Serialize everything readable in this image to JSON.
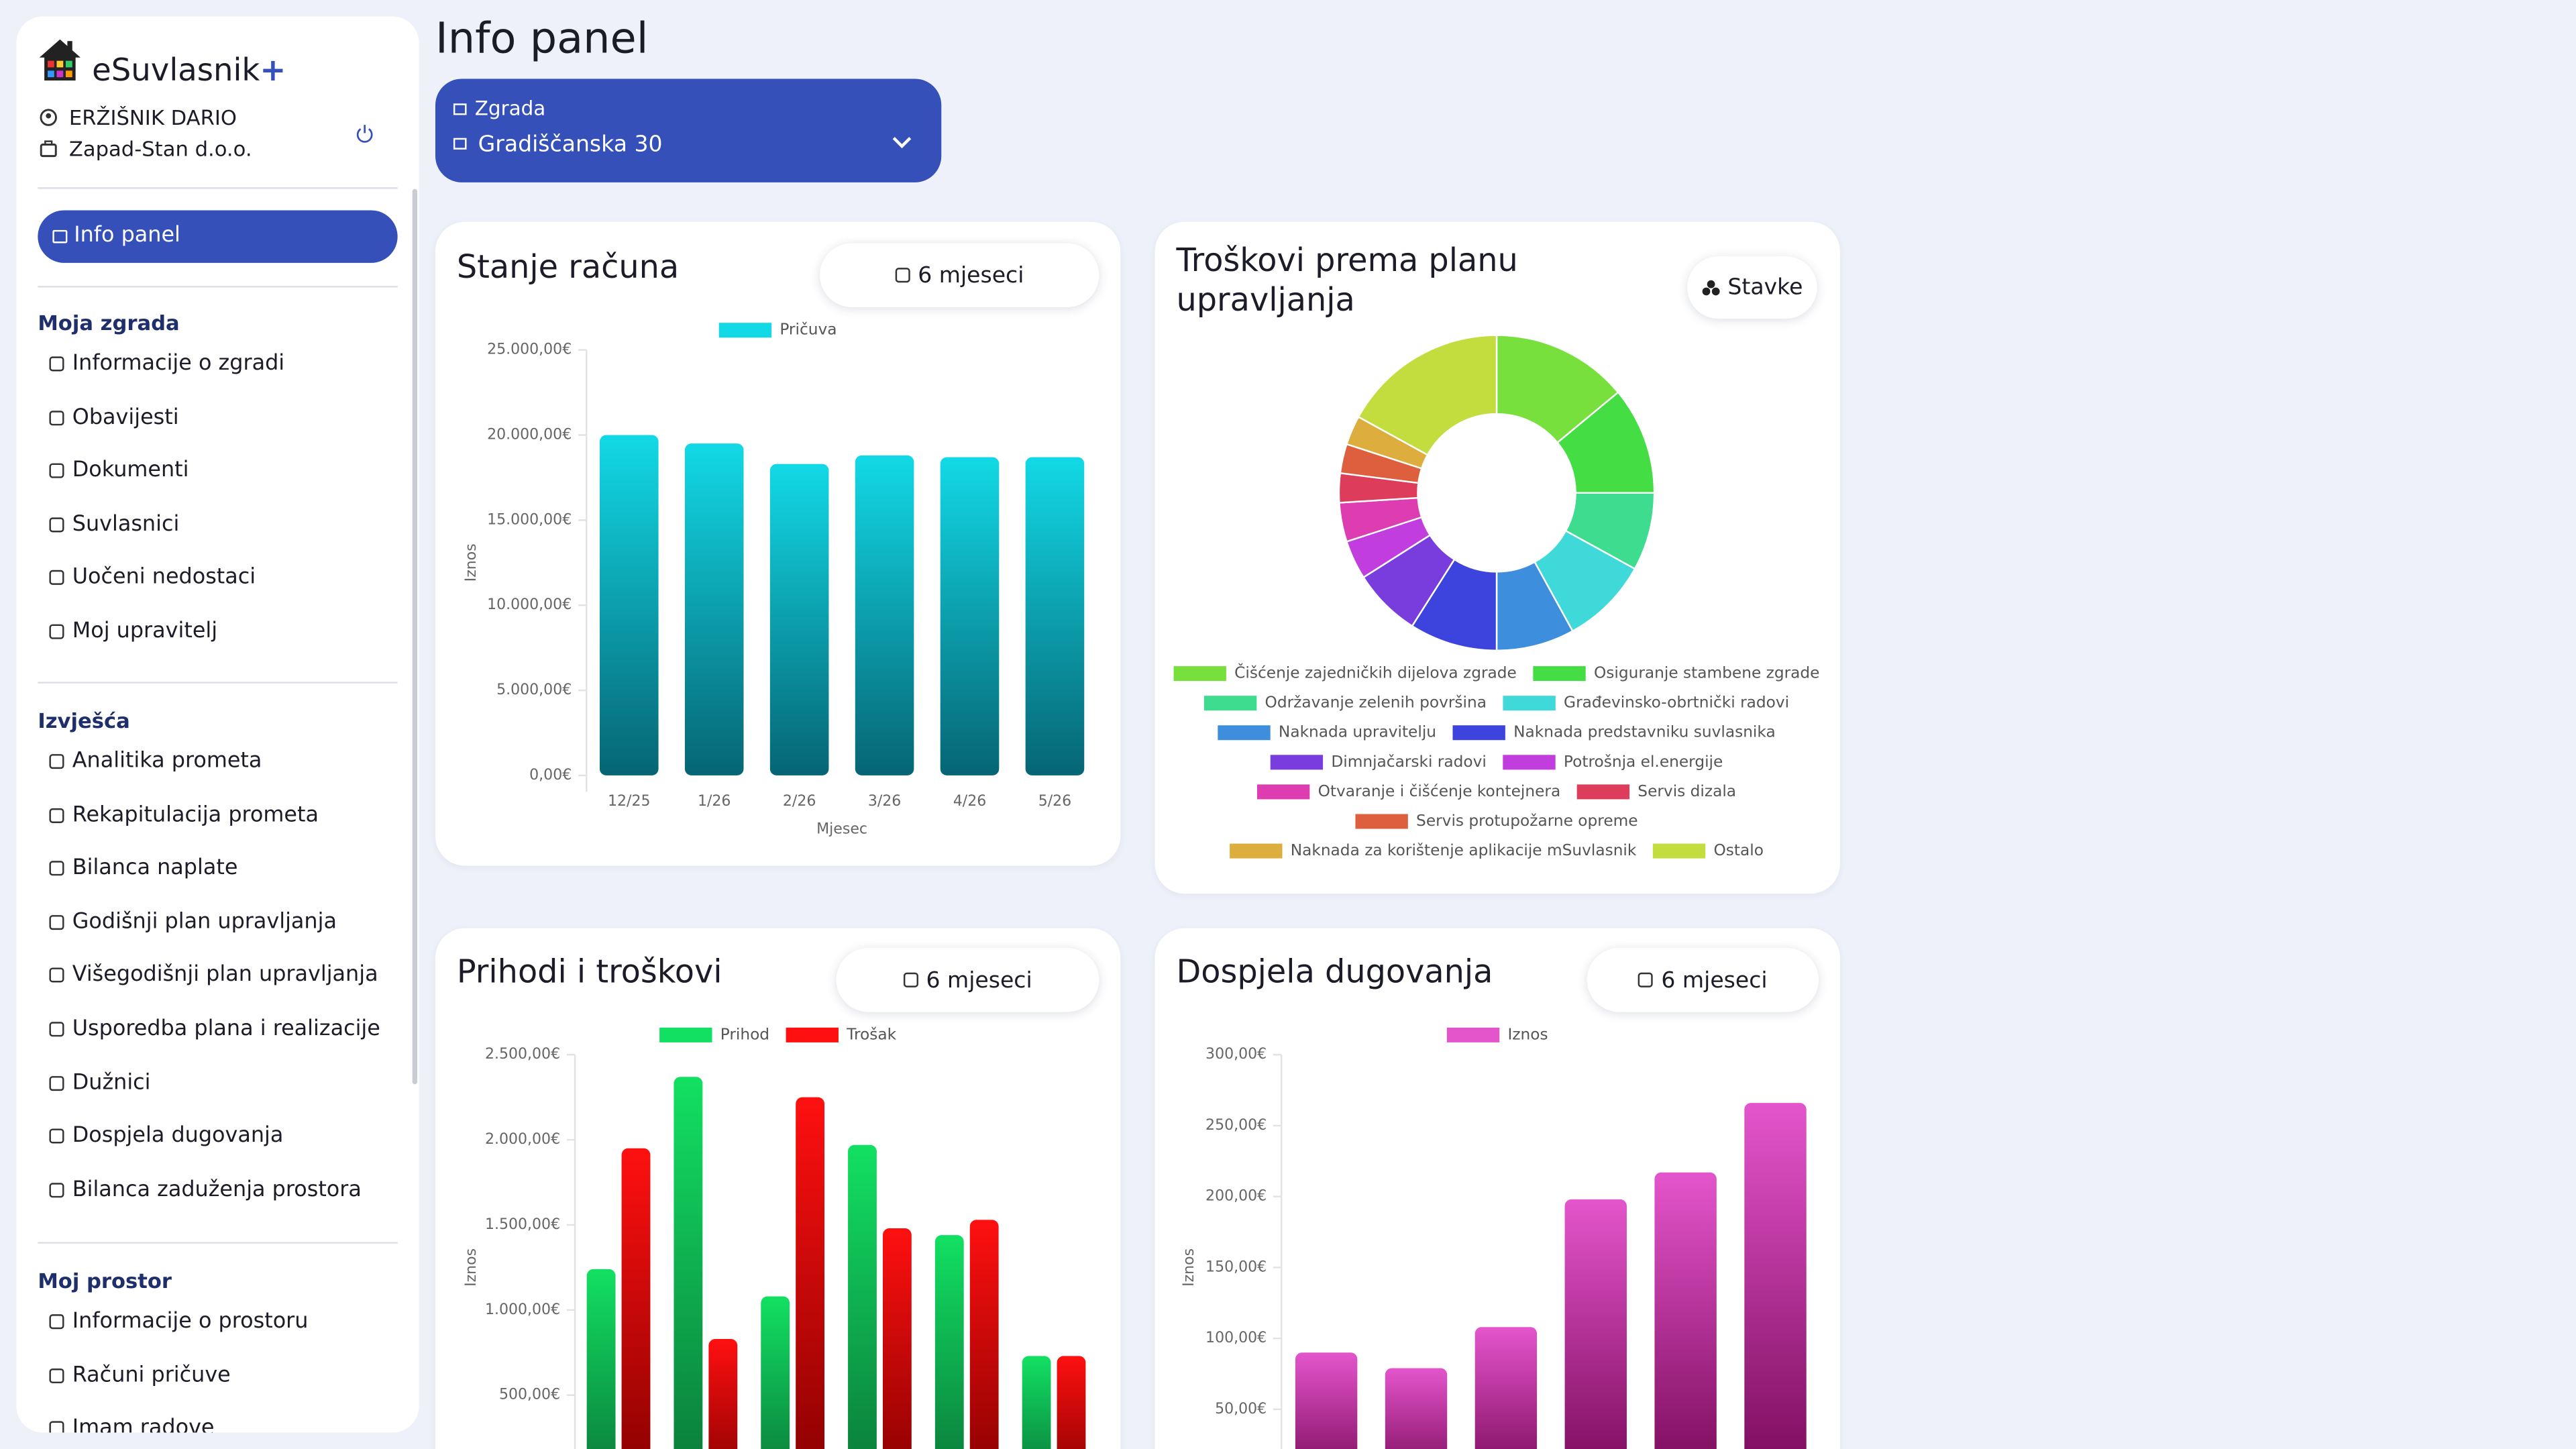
{
  "sidebar": {
    "brand": "eSuvlasnik",
    "brand_plus": "+",
    "user": "ERŽIŠNIK DARIO",
    "company": "Zapad-Stan d.o.o.",
    "active": "Info panel",
    "sections": [
      {
        "title": "Moja zgrada",
        "items": [
          "Informacije o zgradi",
          "Obavijesti",
          "Dokumenti",
          "Suvlasnici",
          "Uočeni nedostaci",
          "Moj upravitelj"
        ]
      },
      {
        "title": "Izvješća",
        "items": [
          "Analitika prometa",
          "Rekapitulacija prometa",
          "Bilanca naplate",
          "Godišnji plan upravljanja",
          "Višegodišnji plan upravljanja",
          "Usporedba plana i realizacije",
          "Dužnici",
          "Dospjela dugovanja",
          "Bilanca zaduženja prostora"
        ]
      },
      {
        "title": "Moj prostor",
        "items": [
          "Informacije o prostoru",
          "Računi pričuve",
          "Imam radove"
        ]
      }
    ]
  },
  "header": {
    "title": "Info panel",
    "building_label": "Zgrada",
    "building": "Gradiščanska 30"
  },
  "cards": [
    {
      "button": "6 mjeseci"
    },
    {
      "button": "Stavke"
    },
    {
      "button": "6 mjeseci"
    },
    {
      "button": "6 mjeseci"
    }
  ],
  "chart_data": [
    {
      "type": "bar",
      "title": "Stanje računa",
      "x_label": "Mjesec",
      "y_label": "Iznos",
      "categories": [
        "12/25",
        "1/26",
        "2/26",
        "3/26",
        "4/26",
        "5/26"
      ],
      "series": [
        {
          "name": "Pričuva",
          "color": "#12d9e6",
          "color_end": "#066574",
          "values": [
            20000,
            19500,
            18300,
            18800,
            18700,
            18700
          ]
        }
      ],
      "ylim": [
        0,
        25000
      ],
      "yticks": [
        {
          "value": 0,
          "label": "0,00€"
        },
        {
          "value": 5000,
          "label": "5.000,00€"
        },
        {
          "value": 10000,
          "label": "10.000,00€"
        },
        {
          "value": 15000,
          "label": "15.000,00€"
        },
        {
          "value": 20000,
          "label": "20.000,00€"
        },
        {
          "value": 25000,
          "label": "25.000,00€"
        }
      ],
      "grid": false
    },
    {
      "type": "doughnut",
      "title": "Troškovi prema planu upravljanja",
      "categories": [
        "Čišćenje zajedničkih dijelova zgrade",
        "Osiguranje stambene zgrade",
        "Održavanje zelenih površina",
        "Građevinsko-obrtnički radovi",
        "Naknada upravitelju",
        "Naknada predstavniku suvlasnika",
        "Dimnjačarski radovi",
        "Potrošnja el.energije",
        "Otvaranje i čišćenje kontejnera",
        "Servis dizala",
        "Servis protupožarne opreme",
        "Naknada za korištenje aplikacije mSuvlasnik",
        "Ostalo"
      ],
      "values": [
        14,
        11,
        8,
        9,
        8,
        9,
        7,
        4,
        4,
        3,
        3,
        3,
        17
      ],
      "colors": [
        "#78e03d",
        "#44dd44",
        "#3ddc8e",
        "#40d9d9",
        "#3d8fdd",
        "#3d44dd",
        "#7a3ddd",
        "#c23ddd",
        "#dd3db0",
        "#dd3d5b",
        "#dd5f3d",
        "#ddae3d",
        "#c2dd3d"
      ]
    },
    {
      "type": "bar",
      "title": "Prihodi i troškovi",
      "y_label": "Iznos",
      "categories": [
        null,
        null,
        null,
        null,
        null,
        null
      ],
      "series": [
        {
          "name": "Prihod",
          "color": "#12e062",
          "color_end": "#0a7a3a",
          "values": [
            1240,
            2370,
            1080,
            1970,
            1440,
            730
          ]
        },
        {
          "name": "Trošak",
          "color": "#ff1010",
          "color_end": "#8a0000",
          "values": [
            1950,
            830,
            2250,
            1480,
            1530,
            730
          ]
        }
      ],
      "ylim": [
        0,
        2500
      ],
      "yticks": [
        {
          "value": 500,
          "label": "500,00€"
        },
        {
          "value": 1000,
          "label": "1.000,00€"
        },
        {
          "value": 1500,
          "label": "1.500,00€"
        },
        {
          "value": 2000,
          "label": "2.000,00€"
        },
        {
          "value": 2500,
          "label": "2.500,00€"
        }
      ],
      "grid": false
    },
    {
      "type": "bar",
      "title": "Dospjela dugovanja",
      "y_label": "Iznos",
      "categories": [
        null,
        null,
        null,
        null,
        null,
        null
      ],
      "series": [
        {
          "name": "Iznos",
          "color": "#e455cc",
          "color_end": "#7a0a5a",
          "values": [
            90,
            79,
            108,
            198,
            217,
            266
          ]
        }
      ],
      "ylim": [
        0,
        300
      ],
      "yticks": [
        {
          "value": 50,
          "label": "50,00€"
        },
        {
          "value": 100,
          "label": "100,00€"
        },
        {
          "value": 150,
          "label": "150,00€"
        },
        {
          "value": 200,
          "label": "200,00€"
        },
        {
          "value": 250,
          "label": "250,00€"
        },
        {
          "value": 300,
          "label": "300,00€"
        }
      ],
      "grid": false
    }
  ]
}
